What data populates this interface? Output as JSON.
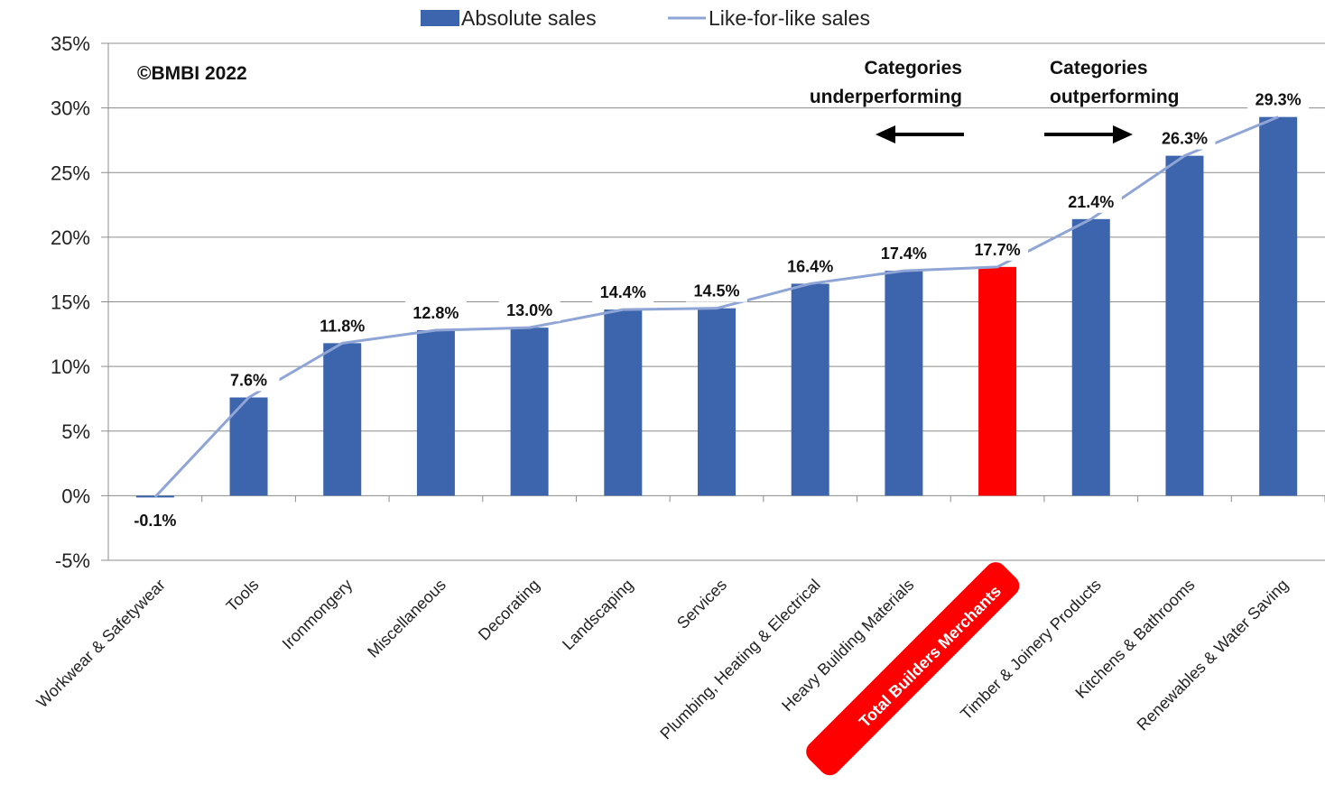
{
  "chart_data": {
    "type": "bar",
    "categories": [
      "Workwear & Safetywear",
      "Tools",
      "Ironmongery",
      "Miscellaneous",
      "Decorating",
      "Landscaping",
      "Services",
      "Plumbing, Heating & Electrical",
      "Heavy Building Materials",
      "Total Builders Merchants",
      "Timber & Joinery Products",
      "Kitchens & Bathrooms",
      "Renewables & Water Saving"
    ],
    "series": [
      {
        "name": "Absolute sales",
        "type": "bar",
        "values": [
          -0.1,
          7.6,
          11.8,
          12.8,
          13.0,
          14.4,
          14.5,
          16.4,
          17.4,
          17.7,
          21.4,
          26.3,
          29.3
        ],
        "data_labels": [
          "-0.1%",
          "7.6%",
          "11.8%",
          "12.8%",
          "13.0%",
          "14.4%",
          "14.5%",
          "16.4%",
          "17.4%",
          "17.7%",
          "21.4%",
          "26.3%",
          "29.3%"
        ]
      },
      {
        "name": "Like-for-like sales",
        "type": "line",
        "values": [
          -0.1,
          7.6,
          11.8,
          12.8,
          13.0,
          14.4,
          14.5,
          16.4,
          17.4,
          17.7,
          21.4,
          26.3,
          29.3
        ]
      }
    ],
    "highlight_category": "Total Builders Merchants",
    "y_ticks": [
      "-5%",
      "0%",
      "5%",
      "10%",
      "15%",
      "20%",
      "25%",
      "30%",
      "35%"
    ],
    "ylim": [
      -5,
      35
    ],
    "grid": true,
    "legend_position": "top",
    "colors": {
      "bar": "#3d65ad",
      "highlight": "#ff0000",
      "line": "#8fa5d6",
      "axis": "#8c8c8c",
      "grid": "#8c8c8c"
    },
    "annotations": {
      "copyright": "©BMBI 2022",
      "left_note": [
        "Categories",
        "underperforming"
      ],
      "right_note": [
        "Categories",
        "outperforming"
      ],
      "left_arrow_icon": "arrow-left-icon",
      "right_arrow_icon": "arrow-right-icon"
    }
  }
}
